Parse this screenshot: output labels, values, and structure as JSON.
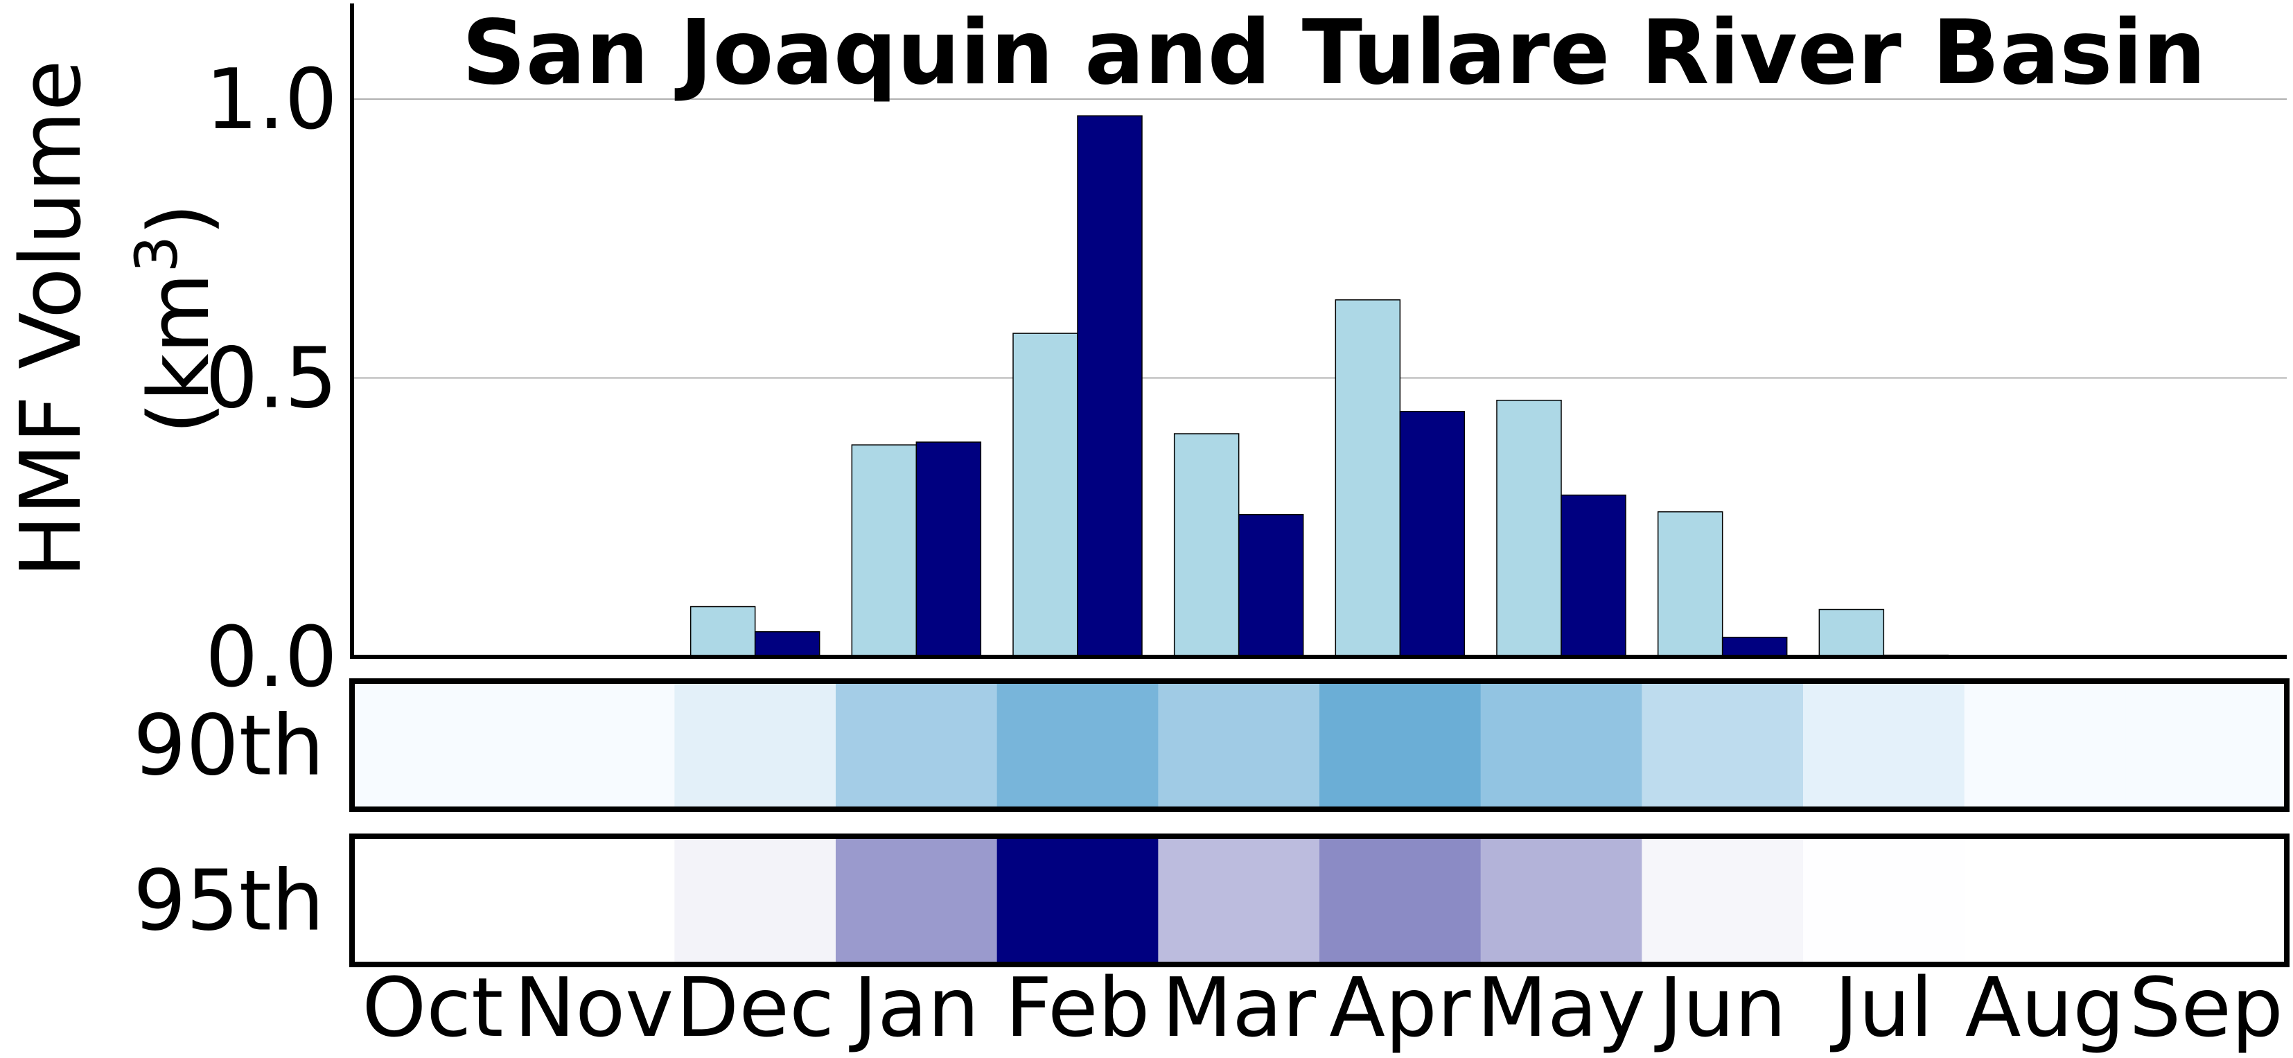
{
  "chart_data": [
    {
      "type": "bar",
      "title": "San Joaquin and Tulare River Basin",
      "ylabel": "HMF Volume",
      "ylabel_unit": "(km",
      "ylabel_unit_sup": "3",
      "ylabel_unit_close": ")",
      "categories": [
        "Oct",
        "Nov",
        "Dec",
        "Jan",
        "Feb",
        "Mar",
        "Apr",
        "May",
        "Jun",
        "Jul",
        "Aug",
        "Sep"
      ],
      "ylim": [
        0,
        1.2
      ],
      "yticks": [
        0.0,
        0.5,
        1.0
      ],
      "ytick_labels": [
        "0.0",
        "0.5",
        "1.0"
      ],
      "grid": "horizontal",
      "series": [
        {
          "color": "#add8e6",
          "values": [
            0,
            0,
            0.09,
            0.38,
            0.58,
            0.4,
            0.64,
            0.46,
            0.26,
            0.085,
            0,
            0
          ]
        },
        {
          "color": "#000080",
          "values": [
            0,
            0,
            0.045,
            0.385,
            0.97,
            0.255,
            0.44,
            0.29,
            0.035,
            0.003,
            0,
            0
          ]
        }
      ]
    },
    {
      "type": "heatmap",
      "rows": [
        {
          "label": "90th",
          "values": [
            0.0,
            0.0,
            0.09,
            0.38,
            0.58,
            0.4,
            0.64,
            0.46,
            0.26,
            0.085,
            0.0,
            0.0
          ]
        },
        {
          "label": "95th",
          "values": [
            0.0,
            0.0,
            0.045,
            0.385,
            0.97,
            0.255,
            0.44,
            0.29,
            0.035,
            0.003,
            0.0,
            0.0
          ]
        }
      ],
      "categories": [
        "Oct",
        "Nov",
        "Dec",
        "Jan",
        "Feb",
        "Mar",
        "Apr",
        "May",
        "Jun",
        "Jul",
        "Aug",
        "Sep"
      ],
      "colormaps": {
        "90th": [
          "#f7fbff",
          "#6baed6"
        ],
        "95th": [
          "#ffffff",
          "#000080"
        ]
      }
    }
  ]
}
